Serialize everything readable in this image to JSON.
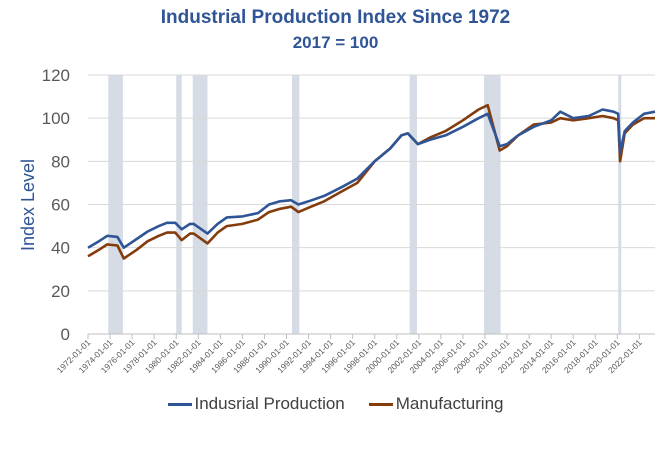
{
  "chart_data": {
    "type": "line",
    "title": "Industrial Production Index Since 1972",
    "subtitle": "2017 = 100",
    "ylabel": "Index Level",
    "xlabel": "",
    "ylim": [
      0,
      120
    ],
    "yticks": [
      "0",
      "20",
      "40",
      "60",
      "80",
      "100",
      "120"
    ],
    "xlim": [
      "1972-01-01",
      "2023-06-01"
    ],
    "xticks": [
      "1972-01-01",
      "1974-01-01",
      "1976-01-01",
      "1978-01-01",
      "1980-01-01",
      "1982-01-01",
      "1984-01-01",
      "1986-01-01",
      "1988-01-01",
      "1990-01-01",
      "1992-01-01",
      "1994-01-01",
      "1996-01-01",
      "1998-01-01",
      "2000-01-01",
      "2002-01-01",
      "2004-01-01",
      "2006-01-01",
      "2008-01-01",
      "2010-01-01",
      "2012-01-01",
      "2014-01-01",
      "2016-01-01",
      "2018-01-01",
      "2020-01-01",
      "2022-01-01"
    ],
    "grid": true,
    "legend": "bottom",
    "recession_bands": [
      [
        "1973-11-01",
        "1975-03-01"
      ],
      [
        "1980-01-01",
        "1980-07-01"
      ],
      [
        "1981-07-01",
        "1982-11-01"
      ],
      [
        "1990-07-01",
        "1991-03-01"
      ],
      [
        "2001-03-01",
        "2001-11-01"
      ],
      [
        "2007-12-01",
        "2009-06-01"
      ],
      [
        "2020-02-01",
        "2020-04-01"
      ]
    ],
    "recession_color": "#d6dce5",
    "series": [
      {
        "name": "Indusrial Production",
        "color": "#2f5597",
        "x": [
          "1972-01-01",
          "1973-01-01",
          "1973-10-01",
          "1974-09-01",
          "1975-04-01",
          "1976-06-01",
          "1977-06-01",
          "1978-06-01",
          "1979-03-01",
          "1979-12-01",
          "1980-07-01",
          "1981-04-01",
          "1981-08-01",
          "1982-11-01",
          "1983-10-01",
          "1984-08-01",
          "1986-01-01",
          "1987-06-01",
          "1988-06-01",
          "1989-06-01",
          "1990-06-01",
          "1991-02-01",
          "1992-01-01",
          "1993-06-01",
          "1995-01-01",
          "1996-06-01",
          "1998-01-01",
          "1999-06-01",
          "2000-06-01",
          "2001-01-01",
          "2001-12-01",
          "2003-01-01",
          "2004-06-01",
          "2006-01-01",
          "2007-06-01",
          "2008-04-01",
          "2009-05-01",
          "2010-01-01",
          "2011-01-01",
          "2012-06-01",
          "2014-01-01",
          "2014-11-01",
          "2016-01-01",
          "2017-06-01",
          "2018-09-01",
          "2019-09-01",
          "2020-02-01",
          "2020-04-01",
          "2020-09-01",
          "2021-06-01",
          "2022-06-01",
          "2023-06-01"
        ],
        "y": [
          40,
          43,
          45.5,
          45,
          40,
          44,
          47.5,
          50,
          51.5,
          51.5,
          48.5,
          51,
          51,
          46.5,
          51,
          54,
          54.5,
          56,
          60,
          61.5,
          62,
          60,
          61.5,
          64,
          68,
          72,
          80,
          86,
          92,
          93,
          88,
          90,
          92,
          96,
          100,
          102,
          87,
          88,
          92,
          96,
          99,
          103,
          100,
          101,
          104,
          103,
          102,
          84,
          94,
          98,
          102,
          103
        ]
      },
      {
        "name": "Manufacturing",
        "color": "#843c0c",
        "x": [
          "1972-01-01",
          "1973-01-01",
          "1973-10-01",
          "1974-09-01",
          "1975-04-01",
          "1976-06-01",
          "1977-06-01",
          "1978-06-01",
          "1979-03-01",
          "1979-12-01",
          "1980-07-01",
          "1981-04-01",
          "1981-08-01",
          "1982-11-01",
          "1983-10-01",
          "1984-08-01",
          "1986-01-01",
          "1987-06-01",
          "1988-06-01",
          "1989-06-01",
          "1990-06-01",
          "1991-02-01",
          "1992-01-01",
          "1993-06-01",
          "1995-01-01",
          "1996-06-01",
          "1998-01-01",
          "1999-06-01",
          "2000-06-01",
          "2001-01-01",
          "2001-12-01",
          "2003-01-01",
          "2004-06-01",
          "2006-01-01",
          "2007-06-01",
          "2008-04-01",
          "2009-05-01",
          "2010-01-01",
          "2011-01-01",
          "2012-06-01",
          "2014-01-01",
          "2014-11-01",
          "2016-01-01",
          "2017-06-01",
          "2018-09-01",
          "2019-09-01",
          "2020-02-01",
          "2020-04-01",
          "2020-09-01",
          "2021-06-01",
          "2022-06-01",
          "2023-06-01"
        ],
        "y": [
          36,
          39,
          41.5,
          41,
          35,
          39,
          43,
          45.5,
          47,
          47,
          43.5,
          46.5,
          46.5,
          42,
          47,
          50,
          51,
          53,
          56.5,
          58,
          59,
          56.5,
          58.5,
          61.5,
          66,
          70,
          80,
          86,
          92,
          93,
          88,
          91,
          94,
          99,
          104,
          106,
          85,
          87,
          92,
          97,
          98,
          100,
          99,
          100,
          101,
          100,
          99,
          80,
          93,
          97,
          100,
          100
        ]
      }
    ]
  }
}
